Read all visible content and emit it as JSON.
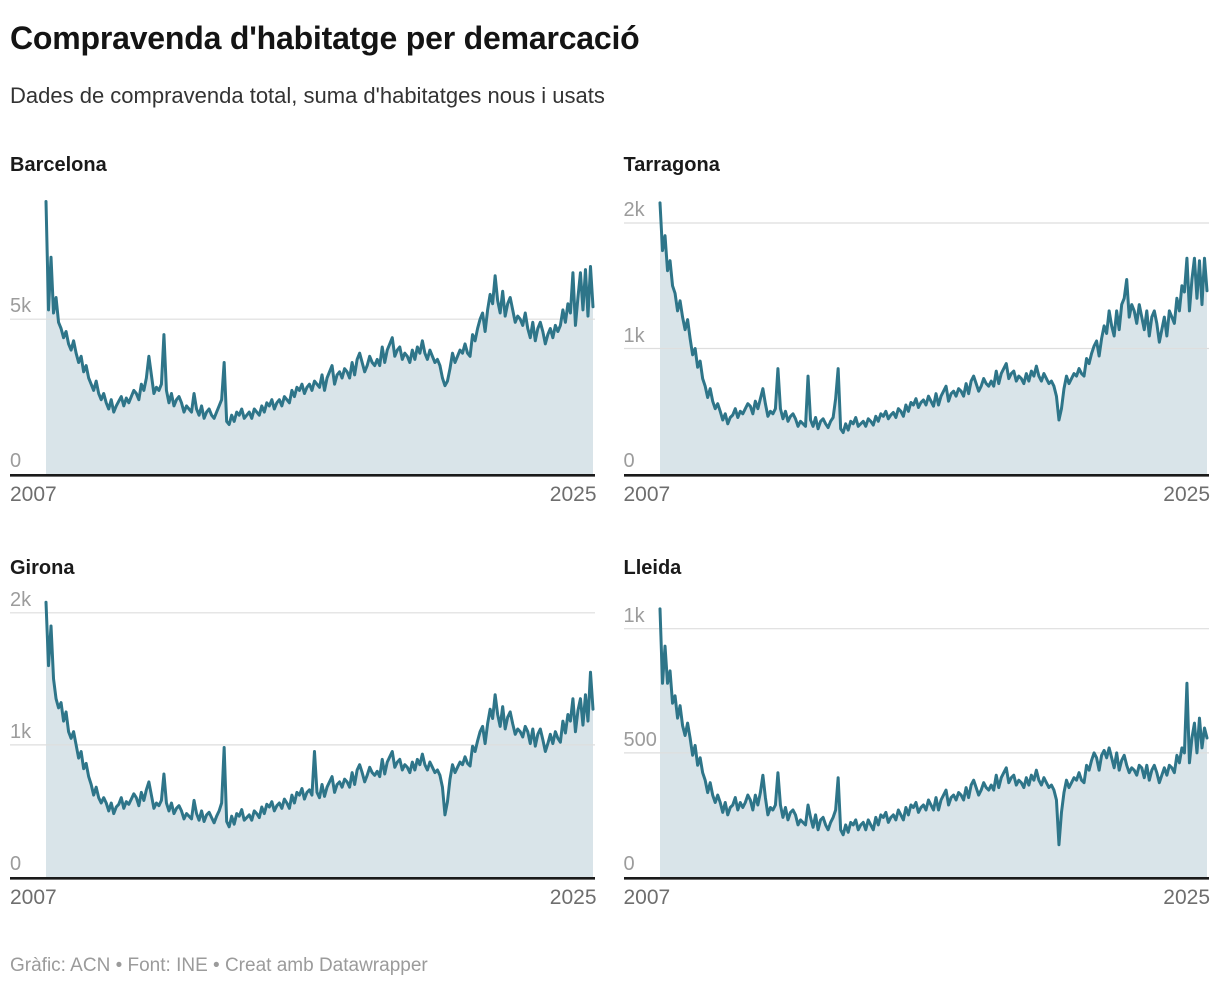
{
  "header": {
    "title": "Compravenda d'habitatge per demarcació",
    "subtitle": "Dades de compravenda total, suma d'habitatges nous i usats"
  },
  "footer": {
    "credits": "Gràfic: ACN • Font: INE • Creat amb Datawrapper"
  },
  "colors": {
    "line": "#2e7589",
    "area_fill": "#d9e4e9",
    "gridline": "#dedede",
    "axis": "#1a1a1a",
    "y_label": "#9c9c9c",
    "x_label": "#6e6e6e"
  },
  "chart_data": [
    {
      "type": "area",
      "region": "Barcelona",
      "x_ticks": [
        "2007",
        "2025"
      ],
      "x_range_note": "monthly, Jan 2007 - Mar 2025",
      "y_ticks": [
        {
          "v": 0,
          "label": "0"
        },
        {
          "v": 5000,
          "label": "5k"
        }
      ],
      "ymax": 9300,
      "values": [
        8800,
        5300,
        7000,
        5200,
        5700,
        4900,
        4700,
        4400,
        4600,
        4200,
        4000,
        4300,
        3900,
        3600,
        3800,
        3300,
        3500,
        3100,
        2900,
        2700,
        3000,
        2600,
        2400,
        2600,
        2300,
        2100,
        2400,
        2000,
        2200,
        2350,
        2500,
        2200,
        2450,
        2300,
        2500,
        2700,
        2600,
        2400,
        2900,
        2700,
        3100,
        3800,
        3200,
        2600,
        2800,
        2700,
        2900,
        4500,
        2700,
        2300,
        2600,
        2200,
        2400,
        2500,
        2300,
        2000,
        2200,
        2100,
        2000,
        2600,
        2100,
        1900,
        2200,
        1800,
        2000,
        2100,
        1900,
        1800,
        2000,
        2200,
        2400,
        3600,
        1700,
        1600,
        1900,
        1700,
        2000,
        1900,
        2100,
        1800,
        1900,
        2000,
        1800,
        2100,
        2000,
        1900,
        2200,
        2000,
        2300,
        2200,
        2400,
        2100,
        2300,
        2400,
        2200,
        2500,
        2400,
        2300,
        2700,
        2500,
        2800,
        2700,
        2900,
        2600,
        2800,
        2900,
        2700,
        3000,
        2900,
        2800,
        3200,
        2700,
        3100,
        3300,
        3500,
        2900,
        3200,
        3300,
        3100,
        3400,
        3300,
        3100,
        3600,
        3200,
        3700,
        3900,
        3600,
        3300,
        3500,
        3800,
        3600,
        3500,
        3700,
        3500,
        4100,
        3600,
        4000,
        4200,
        4400,
        3800,
        4000,
        4100,
        3700,
        3900,
        3800,
        3600,
        4000,
        3700,
        4100,
        3900,
        4300,
        3900,
        3700,
        4000,
        3800,
        3600,
        3700,
        3500,
        3100,
        2850,
        3000,
        3400,
        3900,
        3600,
        3800,
        4000,
        3900,
        4200,
        3900,
        3800,
        4500,
        4300,
        4700,
        5000,
        5200,
        4600,
        5300,
        5800,
        5500,
        6400,
        5600,
        5200,
        5900,
        5100,
        5500,
        5700,
        5300,
        4900,
        5100,
        5000,
        4800,
        5200,
        4700,
        4400,
        4900,
        4300,
        4700,
        4900,
        4600,
        4200,
        4500,
        4700,
        4400,
        4800,
        4600,
        4800,
        5300,
        4900,
        5500,
        5200,
        6500,
        4800,
        5700,
        6500,
        5300,
        6600,
        5100,
        6700,
        5400
      ]
    },
    {
      "type": "area",
      "region": "Tarragona",
      "x_ticks": [
        "2007",
        "2025"
      ],
      "x_range_note": "monthly, Jan 2007 - Mar 2025",
      "y_ticks": [
        {
          "v": 0,
          "label": "0"
        },
        {
          "v": 1000,
          "label": "1k"
        },
        {
          "v": 2000,
          "label": "2k"
        }
      ],
      "ymax": 2295,
      "values": [
        2160,
        1780,
        1900,
        1620,
        1700,
        1500,
        1440,
        1300,
        1380,
        1250,
        1150,
        1230,
        1080,
        950,
        1000,
        850,
        900,
        760,
        700,
        610,
        680,
        580,
        520,
        560,
        500,
        430,
        480,
        400,
        450,
        470,
        520,
        450,
        500,
        480,
        520,
        560,
        540,
        480,
        580,
        520,
        600,
        680,
        560,
        460,
        500,
        480,
        520,
        840,
        520,
        440,
        500,
        420,
        460,
        480,
        440,
        380,
        420,
        400,
        380,
        780,
        430,
        380,
        450,
        360,
        420,
        440,
        400,
        370,
        420,
        450,
        600,
        840,
        360,
        330,
        400,
        350,
        420,
        400,
        450,
        380,
        400,
        420,
        380,
        440,
        420,
        390,
        460,
        420,
        480,
        460,
        500,
        440,
        470,
        490,
        450,
        520,
        500,
        460,
        550,
        500,
        570,
        550,
        600,
        530,
        570,
        590,
        550,
        620,
        580,
        540,
        640,
        550,
        620,
        660,
        700,
        580,
        640,
        660,
        620,
        680,
        660,
        620,
        720,
        640,
        740,
        780,
        720,
        660,
        700,
        760,
        720,
        700,
        740,
        700,
        820,
        720,
        800,
        840,
        880,
        760,
        800,
        820,
        740,
        780,
        760,
        720,
        800,
        740,
        820,
        780,
        860,
        780,
        740,
        800,
        760,
        720,
        740,
        700,
        620,
        430,
        520,
        680,
        780,
        720,
        760,
        800,
        780,
        840,
        800,
        780,
        920,
        880,
        960,
        1020,
        1060,
        940,
        1080,
        1180,
        1120,
        1300,
        1180,
        1100,
        1300,
        1150,
        1350,
        1400,
        1550,
        1250,
        1350,
        1300,
        1200,
        1350,
        1250,
        1150,
        1300,
        1100,
        1250,
        1300,
        1200,
        1050,
        1150,
        1250,
        1100,
        1300,
        1250,
        1200,
        1400,
        1300,
        1500,
        1450,
        1720,
        1300,
        1550,
        1720,
        1400,
        1700,
        1350,
        1720,
        1460
      ]
    },
    {
      "type": "area",
      "region": "Girona",
      "x_ticks": [
        "2007",
        "2025"
      ],
      "x_range_note": "monthly, Jan 2007 - Mar 2025",
      "y_ticks": [
        {
          "v": 0,
          "label": "0"
        },
        {
          "v": 1000,
          "label": "1k"
        },
        {
          "v": 2000,
          "label": "2k"
        }
      ],
      "ymax": 2180,
      "values": [
        2080,
        1600,
        1900,
        1500,
        1350,
        1280,
        1320,
        1180,
        1250,
        1100,
        1050,
        1100,
        1000,
        900,
        950,
        820,
        860,
        760,
        700,
        620,
        680,
        600,
        560,
        600,
        560,
        500,
        560,
        480,
        530,
        550,
        600,
        520,
        570,
        550,
        590,
        630,
        600,
        540,
        640,
        580,
        660,
        720,
        620,
        520,
        560,
        540,
        580,
        780,
        560,
        500,
        560,
        480,
        520,
        540,
        500,
        440,
        480,
        460,
        440,
        580,
        480,
        430,
        500,
        420,
        470,
        490,
        450,
        410,
        460,
        500,
        560,
        980,
        420,
        380,
        460,
        400,
        480,
        460,
        510,
        430,
        450,
        470,
        430,
        500,
        480,
        450,
        530,
        480,
        550,
        530,
        570,
        500,
        540,
        560,
        520,
        590,
        560,
        520,
        620,
        560,
        640,
        620,
        670,
        590,
        640,
        660,
        620,
        950,
        640,
        600,
        700,
        610,
        680,
        720,
        760,
        640,
        700,
        720,
        680,
        740,
        720,
        680,
        790,
        700,
        810,
        850,
        790,
        720,
        770,
        830,
        790,
        770,
        800,
        760,
        890,
        780,
        870,
        910,
        950,
        830,
        870,
        890,
        810,
        850,
        830,
        790,
        870,
        810,
        890,
        850,
        930,
        850,
        810,
        870,
        830,
        790,
        810,
        770,
        680,
        470,
        570,
        740,
        850,
        790,
        830,
        870,
        850,
        910,
        860,
        840,
        990,
        950,
        1030,
        1100,
        1140,
        1010,
        1160,
        1270,
        1200,
        1380,
        1230,
        1140,
        1290,
        1120,
        1210,
        1250,
        1160,
        1080,
        1120,
        1100,
        1060,
        1140,
        1100,
        1010,
        1120,
        990,
        1080,
        1120,
        1040,
        950,
        1010,
        1080,
        1010,
        1100,
        1050,
        1020,
        1180,
        1090,
        1230,
        1180,
        1350,
        1100,
        1260,
        1350,
        1150,
        1380,
        1180,
        1550,
        1270
      ]
    },
    {
      "type": "area",
      "region": "Lleida",
      "x_ticks": [
        "2007",
        "2025"
      ],
      "x_range_note": "monthly, Jan 2007 - Mar 2025",
      "y_ticks": [
        {
          "v": 0,
          "label": "0"
        },
        {
          "v": 500,
          "label": "500"
        },
        {
          "v": 1000,
          "label": "1k"
        }
      ],
      "ymax": 1160,
      "values": [
        1080,
        780,
        930,
        780,
        830,
        700,
        730,
        640,
        690,
        610,
        570,
        620,
        560,
        490,
        530,
        450,
        480,
        420,
        390,
        340,
        380,
        330,
        300,
        330,
        300,
        260,
        300,
        250,
        280,
        290,
        320,
        270,
        300,
        280,
        300,
        330,
        310,
        270,
        330,
        290,
        340,
        410,
        320,
        250,
        280,
        270,
        290,
        420,
        290,
        240,
        280,
        230,
        260,
        270,
        250,
        210,
        230,
        220,
        210,
        290,
        240,
        200,
        250,
        190,
        230,
        240,
        210,
        190,
        220,
        240,
        270,
        400,
        190,
        170,
        210,
        180,
        220,
        210,
        230,
        190,
        210,
        220,
        190,
        230,
        210,
        190,
        240,
        210,
        250,
        240,
        260,
        220,
        240,
        250,
        230,
        270,
        250,
        230,
        280,
        250,
        290,
        280,
        300,
        260,
        280,
        290,
        270,
        310,
        290,
        270,
        320,
        270,
        310,
        330,
        350,
        290,
        320,
        330,
        310,
        340,
        330,
        310,
        360,
        320,
        370,
        390,
        360,
        330,
        350,
        380,
        360,
        350,
        370,
        350,
        410,
        360,
        400,
        420,
        440,
        380,
        400,
        410,
        370,
        390,
        380,
        360,
        400,
        370,
        410,
        390,
        430,
        390,
        370,
        400,
        380,
        360,
        370,
        350,
        310,
        130,
        260,
        340,
        390,
        360,
        380,
        400,
        390,
        420,
        390,
        380,
        450,
        430,
        470,
        500,
        480,
        430,
        490,
        510,
        480,
        520,
        480,
        440,
        500,
        430,
        470,
        490,
        450,
        420,
        440,
        430,
        410,
        450,
        440,
        400,
        450,
        390,
        430,
        450,
        420,
        380,
        410,
        440,
        410,
        450,
        440,
        420,
        490,
        460,
        520,
        500,
        780,
        460,
        560,
        620,
        500,
        640,
        520,
        600,
        560
      ]
    }
  ]
}
